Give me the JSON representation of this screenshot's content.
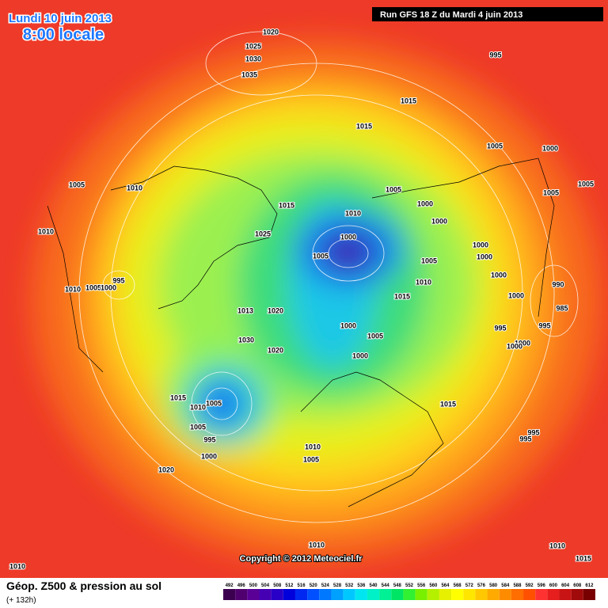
{
  "header": {
    "date": "Lundi 10 juin 2013",
    "time": "8:00 locale",
    "run": "Run GFS 18 Z du Mardi 4 juin 2013"
  },
  "isobar_labels": [
    "1020",
    "1025",
    "1030",
    "1035",
    "995",
    "1015",
    "1015",
    "1005",
    "1000",
    "1005",
    "1010",
    "1005",
    "1005",
    "1005",
    "1015",
    "1000",
    "1010",
    "1000",
    "1010",
    "1025",
    "1000",
    "1000",
    "1005",
    "1000",
    "1005",
    "995",
    "1010",
    "1005",
    "1000",
    "1000",
    "1010",
    "990",
    "1015",
    "1000",
    "985",
    "1013",
    "1020",
    "1000",
    "995",
    "995",
    "1005",
    "1030",
    "1000",
    "1000",
    "1020",
    "1000",
    "1015",
    "1005",
    "1010",
    "1015",
    "1005",
    "995",
    "995",
    "995",
    "1010",
    "1000",
    "1005",
    "1020",
    "1010",
    "1010",
    "1015",
    "1010"
  ],
  "copyright": "Copyright © 2012 Meteociel.fr",
  "legend": {
    "title": "Géop. Z500 & pression au sol",
    "lead": "(+ 132h)",
    "values": [
      492,
      496,
      500,
      504,
      508,
      512,
      516,
      520,
      524,
      528,
      532,
      536,
      540,
      544,
      548,
      552,
      556,
      560,
      564,
      568,
      572,
      576,
      580,
      584,
      588,
      592,
      596,
      600,
      604,
      608,
      612
    ],
    "colors": [
      "#3c0050",
      "#50006e",
      "#5a0096",
      "#4600b4",
      "#2800c8",
      "#0000dc",
      "#0028f0",
      "#0050ff",
      "#0078ff",
      "#00a0ff",
      "#00c8ff",
      "#00e6f0",
      "#00f0c8",
      "#00f096",
      "#00e664",
      "#32f032",
      "#78f000",
      "#b4f000",
      "#e6f000",
      "#ffff00",
      "#ffe600",
      "#ffc800",
      "#ffaa00",
      "#ff8c00",
      "#ff6e00",
      "#ff5000",
      "#ff3232",
      "#e61e1e",
      "#c81414",
      "#a00a0a",
      "#780000"
    ]
  }
}
